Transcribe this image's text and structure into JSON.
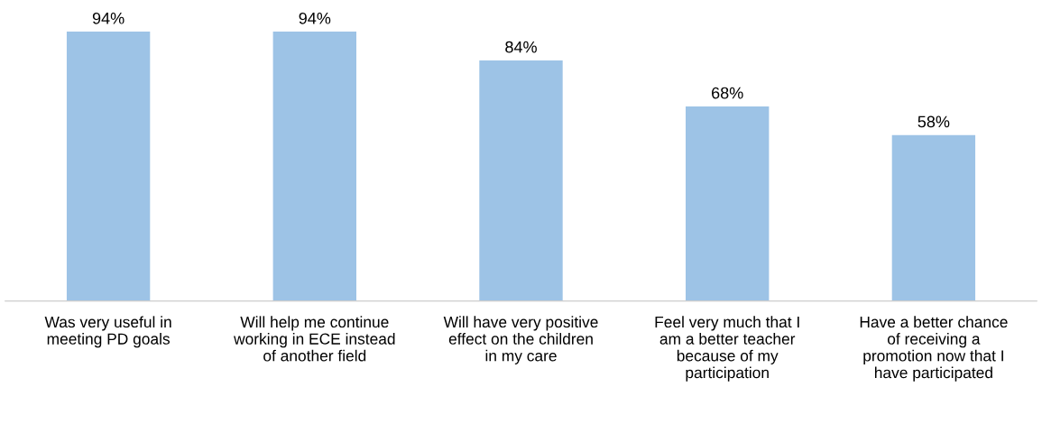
{
  "chart_data": {
    "type": "bar",
    "categories": [
      "Was very useful in\nmeeting PD goals",
      "Will help me continue\nworking in ECE instead\nof another field",
      "Will have very positive\neffect on the children\nin my care",
      "Feel very much that I\nam a better teacher\nbecause of my\nparticipation",
      "Have a better chance\nof receiving a\npromotion now that I\nhave participated"
    ],
    "values": [
      94,
      94,
      84,
      68,
      58
    ],
    "value_labels": [
      "94%",
      "94%",
      "84%",
      "68%",
      "58%"
    ],
    "color": "#9dc3e6",
    "grid": false,
    "legend": false
  }
}
